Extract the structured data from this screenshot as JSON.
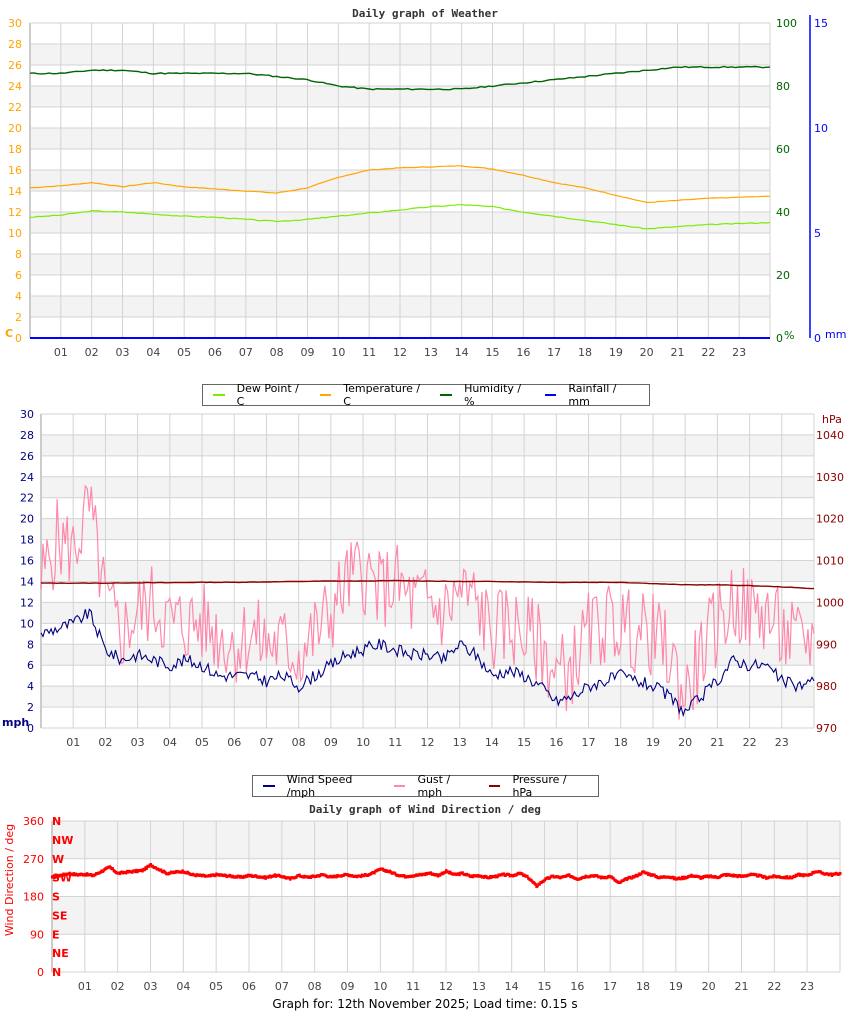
{
  "footer": "Graph for: 12th November 2025; Load time: 0.15 s",
  "colors": {
    "dew": "#77ee00",
    "temp": "#ffa500",
    "humidity": "#006400",
    "rain": "#0000ff",
    "wind": "#000080",
    "gust": "#ff88aa",
    "pressure": "#8b0000",
    "direction": "#ff0000",
    "grid": "#d3d3d3",
    "band": "#f3f3f3"
  },
  "chart_data": [
    {
      "type": "line",
      "title": "Daily graph of Weather",
      "x_ticks": [
        "01",
        "02",
        "03",
        "04",
        "05",
        "06",
        "07",
        "08",
        "09",
        "10",
        "11",
        "12",
        "13",
        "14",
        "15",
        "16",
        "17",
        "18",
        "19",
        "20",
        "21",
        "22",
        "23"
      ],
      "x_hours": [
        0,
        1,
        2,
        3,
        4,
        5,
        6,
        7,
        8,
        9,
        10,
        11,
        12,
        13,
        14,
        15,
        16,
        17,
        18,
        19,
        20,
        21,
        22,
        23,
        24
      ],
      "left_axis": {
        "label": "C",
        "ylim": [
          0,
          30
        ],
        "ticks": [
          0,
          2,
          4,
          6,
          8,
          10,
          12,
          14,
          16,
          18,
          20,
          22,
          24,
          26,
          28,
          30
        ]
      },
      "right_axis": {
        "label": "%",
        "ylim": [
          0,
          100
        ],
        "ticks": [
          0,
          20,
          40,
          60,
          80,
          100
        ]
      },
      "right_axis_2": {
        "label": "mm",
        "ylim": [
          0,
          15
        ],
        "ticks": [
          0,
          5,
          10,
          15
        ]
      },
      "grid": true,
      "legend_position": "bottom",
      "series": [
        {
          "name": "Dew Point / C",
          "axis": "left",
          "values": [
            11.5,
            11.7,
            12.1,
            12.0,
            11.8,
            11.6,
            11.5,
            11.3,
            11.1,
            11.3,
            11.6,
            11.9,
            12.2,
            12.5,
            12.7,
            12.5,
            12.0,
            11.6,
            11.2,
            10.8,
            10.4,
            10.6,
            10.8,
            10.9,
            11.0
          ]
        },
        {
          "name": "Temperature / C",
          "axis": "left",
          "values": [
            14.3,
            14.5,
            14.8,
            14.4,
            14.8,
            14.4,
            14.2,
            14.0,
            13.8,
            14.3,
            15.3,
            16.0,
            16.2,
            16.3,
            16.4,
            16.1,
            15.5,
            14.8,
            14.3,
            13.6,
            12.9,
            13.1,
            13.3,
            13.4,
            13.5
          ]
        },
        {
          "name": "Humidity / %",
          "axis": "right",
          "values": [
            84,
            84,
            85,
            85,
            84,
            84,
            84,
            84,
            83,
            82,
            80,
            79,
            79,
            79,
            79,
            80,
            81,
            82,
            83,
            84,
            85,
            86,
            86,
            86,
            86
          ]
        },
        {
          "name": "Rainfall / mm",
          "axis": "right2",
          "values": [
            0,
            0,
            0,
            0,
            0,
            0,
            0,
            0,
            0,
            0,
            0,
            0,
            0,
            0,
            0,
            0,
            0,
            0,
            0,
            0,
            0,
            0,
            0,
            0,
            0
          ]
        }
      ]
    },
    {
      "type": "line",
      "title": "",
      "x_ticks": [
        "01",
        "02",
        "03",
        "04",
        "05",
        "06",
        "07",
        "08",
        "09",
        "10",
        "11",
        "12",
        "13",
        "14",
        "15",
        "16",
        "17",
        "18",
        "19",
        "20",
        "21",
        "22",
        "23"
      ],
      "left_axis": {
        "label": "mph",
        "ylim": [
          0,
          30
        ],
        "ticks": [
          0,
          2,
          4,
          6,
          8,
          10,
          12,
          14,
          16,
          18,
          20,
          22,
          24,
          26,
          28,
          30
        ]
      },
      "right_axis": {
        "label": "hPa",
        "ylim": [
          970,
          1045
        ],
        "ticks": [
          970,
          980,
          990,
          1000,
          1010,
          1020,
          1030,
          1040
        ]
      },
      "grid": true,
      "legend_position": "bottom",
      "series": [
        {
          "name": "Wind Speed /mph",
          "axis": "left",
          "step_hours": 0.5,
          "values": [
            9,
            9.5,
            10,
            11,
            7.5,
            6.5,
            7,
            6.5,
            6,
            6.5,
            6,
            5,
            5,
            5,
            4.5,
            5,
            4,
            5,
            6,
            7,
            7.5,
            8,
            7.5,
            7,
            7,
            6.5,
            8,
            7,
            5,
            5.5,
            5,
            4,
            2.5,
            3,
            4,
            4.5,
            5,
            4.5,
            4,
            3,
            1.5,
            3,
            4.5,
            6.5,
            6,
            6,
            4.5,
            4,
            4.5
          ]
        },
        {
          "name": "Gust / mph",
          "axis": "left",
          "step_hours": 0.5,
          "values": [
            14,
            18,
            17,
            21,
            12,
            9,
            11,
            12,
            10,
            10,
            10,
            9,
            8,
            9,
            8,
            8,
            7,
            9,
            11,
            14,
            15,
            13,
            14,
            12,
            12,
            11,
            13,
            12,
            9,
            10,
            9,
            8,
            5,
            6,
            9,
            10,
            10,
            9,
            9,
            7,
            3,
            7,
            10,
            12,
            11,
            11,
            9,
            8,
            9
          ]
        },
        {
          "name": "Pressure / hPa",
          "axis": "right",
          "step_hours": 1,
          "values": [
            1004.6,
            1004.6,
            1004.6,
            1004.7,
            1004.7,
            1004.8,
            1004.8,
            1004.9,
            1005.0,
            1005.1,
            1005.1,
            1005.2,
            1005.1,
            1005.0,
            1005.0,
            1004.9,
            1004.8,
            1004.8,
            1004.8,
            1004.5,
            1004.2,
            1004.2,
            1004.0,
            1003.7,
            1003.3
          ]
        }
      ]
    },
    {
      "type": "scatter",
      "title": "Daily graph of Wind Direction / deg",
      "x_ticks": [
        "01",
        "02",
        "03",
        "04",
        "05",
        "06",
        "07",
        "08",
        "09",
        "10",
        "11",
        "12",
        "13",
        "14",
        "15",
        "16",
        "17",
        "18",
        "19",
        "20",
        "21",
        "22",
        "23"
      ],
      "left_axis": {
        "label": "Wind Direction / deg",
        "ylim": [
          0,
          360
        ],
        "ticks": [
          0,
          90,
          180,
          270,
          360
        ]
      },
      "compass_labels": [
        "N",
        "NE",
        "E",
        "SE",
        "S",
        "SW",
        "W",
        "NW",
        "N"
      ],
      "grid": true,
      "series": [
        {
          "name": "Wind Direction / deg",
          "step_hours": 0.5,
          "values": [
            225,
            230,
            235,
            232,
            233,
            230,
            240,
            250,
            235,
            238,
            240,
            242,
            255,
            245,
            235,
            238,
            240,
            232,
            230,
            228,
            232,
            230,
            228,
            226,
            230,
            228,
            225,
            230,
            228,
            222,
            230,
            226,
            228,
            232,
            226,
            230,
            232,
            228,
            230,
            235,
            245,
            240,
            232,
            228,
            230,
            232,
            236,
            230,
            240,
            232,
            235,
            228,
            230,
            225,
            228,
            232,
            230,
            235,
            225,
            205,
            220,
            228,
            225,
            230,
            222,
            228,
            230,
            225,
            228,
            212,
            222,
            228,
            238,
            232,
            225,
            228,
            222,
            225,
            230,
            225,
            228,
            226,
            232,
            230,
            228,
            232,
            230,
            225,
            228,
            226,
            225,
            232,
            230,
            240,
            235,
            232,
            235
          ]
        }
      ]
    }
  ]
}
